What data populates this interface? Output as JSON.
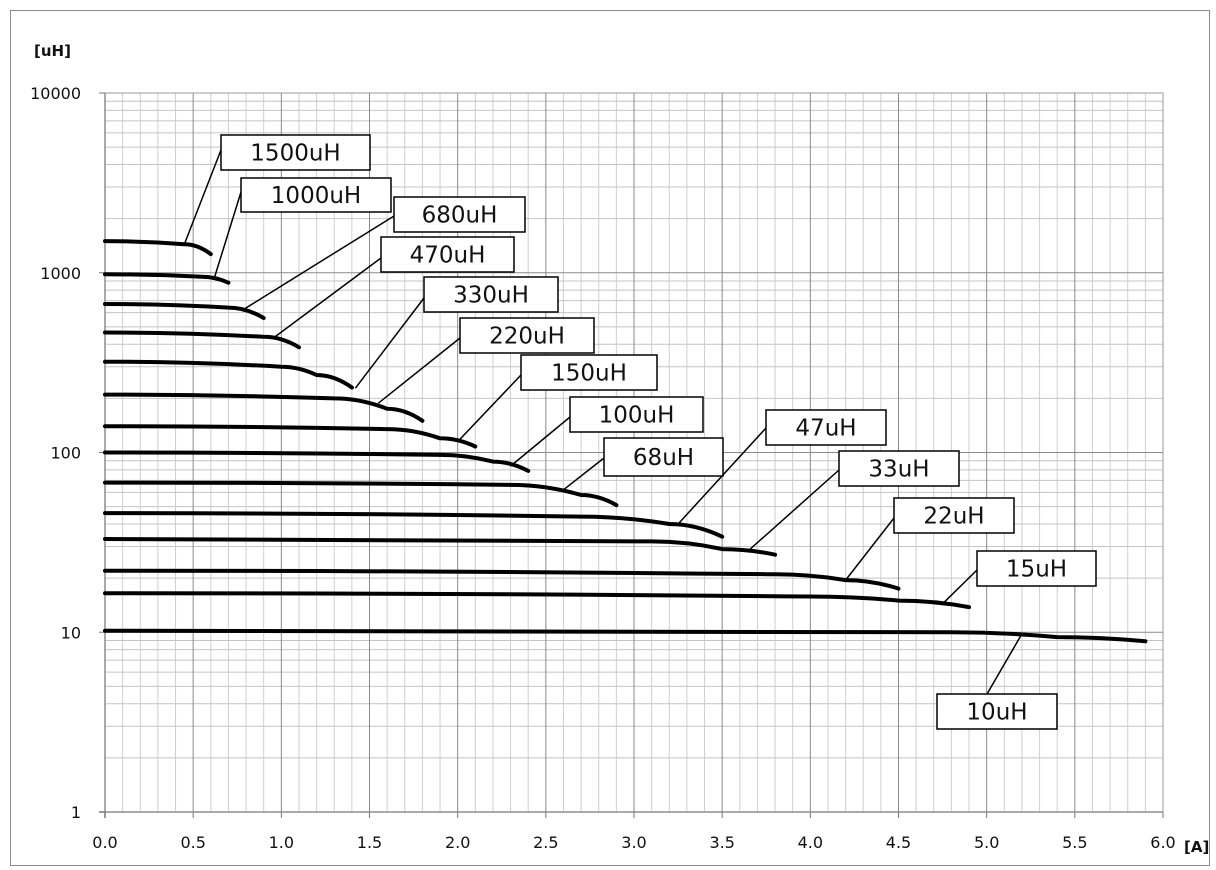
{
  "chart_data": {
    "type": "line",
    "title": "",
    "xlabel": "",
    "ylabel": "",
    "x_unit": "[A]",
    "y_unit": "[uH]",
    "y_scale": "log",
    "xlim": [
      0,
      6
    ],
    "ylim": [
      1,
      10000
    ],
    "grid": true,
    "x_ticks": [
      "0.0",
      "0.5",
      "1.0",
      "1.5",
      "2.0",
      "2.5",
      "3.0",
      "3.5",
      "4.0",
      "4.5",
      "5.0",
      "5.5",
      "6.0"
    ],
    "y_ticks": [
      "1",
      "10",
      "100",
      "1000",
      "10000"
    ],
    "series": [
      {
        "name": "1500uH",
        "points": [
          [
            0,
            1500
          ],
          [
            0.45,
            1440
          ],
          [
            0.6,
            1270
          ]
        ]
      },
      {
        "name": "1000uH",
        "points": [
          [
            0,
            980
          ],
          [
            0.55,
            950
          ],
          [
            0.7,
            880
          ]
        ]
      },
      {
        "name": "680uH",
        "points": [
          [
            0,
            670
          ],
          [
            0.7,
            640
          ],
          [
            0.9,
            560
          ]
        ]
      },
      {
        "name": "470uH",
        "points": [
          [
            0,
            465
          ],
          [
            0.9,
            440
          ],
          [
            1.1,
            385
          ]
        ]
      },
      {
        "name": "330uH",
        "points": [
          [
            0,
            320
          ],
          [
            1.0,
            300
          ],
          [
            1.2,
            270
          ],
          [
            1.4,
            230
          ]
        ]
      },
      {
        "name": "220uH",
        "points": [
          [
            0,
            210
          ],
          [
            1.3,
            200
          ],
          [
            1.6,
            175
          ],
          [
            1.8,
            150
          ]
        ]
      },
      {
        "name": "150uH",
        "points": [
          [
            0,
            140
          ],
          [
            1.6,
            135
          ],
          [
            1.9,
            120
          ],
          [
            2.1,
            108
          ]
        ]
      },
      {
        "name": "100uH",
        "points": [
          [
            0,
            100
          ],
          [
            1.9,
            97
          ],
          [
            2.2,
            89
          ],
          [
            2.4,
            79
          ]
        ]
      },
      {
        "name": "68uH",
        "points": [
          [
            0,
            68
          ],
          [
            2.3,
            66
          ],
          [
            2.7,
            58
          ],
          [
            2.9,
            51
          ]
        ]
      },
      {
        "name": "47uH",
        "points": [
          [
            0,
            46
          ],
          [
            2.7,
            44
          ],
          [
            3.2,
            40
          ],
          [
            3.5,
            34
          ]
        ]
      },
      {
        "name": "33uH",
        "points": [
          [
            0,
            33
          ],
          [
            3.1,
            32
          ],
          [
            3.5,
            29
          ],
          [
            3.8,
            27
          ]
        ]
      },
      {
        "name": "22uH",
        "points": [
          [
            0,
            22
          ],
          [
            3.8,
            21
          ],
          [
            4.2,
            19.5
          ],
          [
            4.5,
            17.5
          ]
        ]
      },
      {
        "name": "15uH",
        "points": [
          [
            0,
            16.5
          ],
          [
            4.0,
            15.8
          ],
          [
            4.5,
            15
          ],
          [
            4.9,
            13.8
          ]
        ]
      },
      {
        "name": "10uH",
        "points": [
          [
            0,
            10.2
          ],
          [
            4.8,
            10
          ],
          [
            5.4,
            9.4
          ],
          [
            5.9,
            8.9
          ]
        ]
      }
    ]
  }
}
